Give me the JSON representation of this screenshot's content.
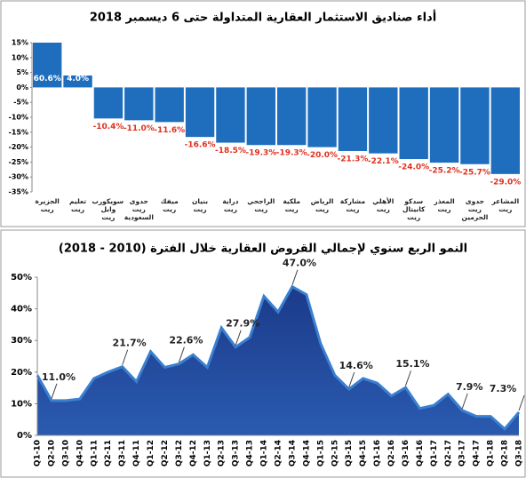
{
  "chart_data": [
    {
      "type": "bar",
      "title": "أداء صناديق الاستثمار العقارية المتداولة حتى 6 ديسمبر 2018",
      "categories": [
        "الجزيرة ريت",
        "تعليم ريت",
        "سويكورب وابل ريت",
        "جدوى ريت السعودية",
        "ميفك ريت",
        "بنيان ريت",
        "دراية ريت",
        "الراجحي ريت",
        "ملكية ريت",
        "الرياض ريت",
        "مشاركة ريت",
        "الأهلي ريت",
        "سدكو كابيتال ريت",
        "المعذر ريت",
        "جدوى ريت الحرمين",
        "المشاعر ريت"
      ],
      "values": [
        60.6,
        4.0,
        -10.4,
        -11.0,
        -11.6,
        -16.6,
        -18.5,
        -19.3,
        -19.3,
        -20.0,
        -21.3,
        -22.1,
        -24.0,
        -25.2,
        -25.7,
        -29.0
      ],
      "value_labels": [
        "60.6%",
        "4.0%",
        "-10.4%",
        "-11.0%",
        "-11.6%",
        "-16.6%",
        "-18.5%",
        "-19.3%",
        "-19.3%",
        "-20.0%",
        "-21.3%",
        "-22.1%",
        "-24.0%",
        "-25.2%",
        "-25.7%",
        "-29.0%"
      ],
      "color": "#1f6dbd",
      "value_label_color": "#e0301e",
      "ylim": [
        -35,
        15
      ],
      "yticks": [
        {
          "value": 15,
          "label": "15%"
        },
        {
          "value": 10,
          "label": "10%"
        },
        {
          "value": 5,
          "label": "5%"
        },
        {
          "value": 0,
          "label": "0%"
        },
        {
          "value": -5,
          "label": "-5%"
        },
        {
          "value": -10,
          "label": "-10%"
        },
        {
          "value": -15,
          "label": "-15%"
        },
        {
          "value": -20,
          "label": "-20%"
        },
        {
          "value": -25,
          "label": "-25%"
        },
        {
          "value": -30,
          "label": "-30%"
        },
        {
          "value": -35,
          "label": "-35%"
        }
      ]
    },
    {
      "type": "area",
      "title": "النمو الربع سنوي لإجمالي القروض العقارية خلال الفترة (2010 - 2018)",
      "categories": [
        "Q1-10",
        "Q2-10",
        "Q3-10",
        "Q4-10",
        "Q1-11",
        "Q2-11",
        "Q3-11",
        "Q4-11",
        "Q1-12",
        "Q2-12",
        "Q3-12",
        "Q4-12",
        "Q1-13",
        "Q2-13",
        "Q3-13",
        "Q4-13",
        "Q1-14",
        "Q2-14",
        "Q3-14",
        "Q4-14",
        "Q1-15",
        "Q2-15",
        "Q3-15",
        "Q4-15",
        "Q1-16",
        "Q2-16",
        "Q3-16",
        "Q4-16",
        "Q1-17",
        "Q2-17",
        "Q3-17",
        "Q4-17",
        "Q1-18",
        "Q2-18",
        "Q3-18"
      ],
      "values": [
        19,
        11.0,
        11,
        11.5,
        18,
        20,
        21.7,
        17,
        26.5,
        21.5,
        22.6,
        25.5,
        21.5,
        34,
        27.9,
        31,
        44,
        39,
        47.0,
        44.5,
        29,
        19,
        14.6,
        18,
        16.5,
        12.5,
        15.1,
        8.5,
        9.5,
        13,
        7.9,
        6,
        6,
        2,
        7.3
      ],
      "value_labels": [
        null,
        "11.0%",
        null,
        null,
        null,
        null,
        "21.7%",
        null,
        null,
        null,
        "22.6%",
        null,
        null,
        null,
        "27.9%",
        null,
        null,
        null,
        "47.0%",
        null,
        null,
        null,
        "14.6%",
        null,
        null,
        null,
        "15.1%",
        null,
        null,
        null,
        "7.9%",
        null,
        null,
        null,
        "7.3%"
      ],
      "color": "#1c3a8a",
      "line_color": "#3a7fd0",
      "ylim": [
        0,
        50
      ],
      "yticks": [
        {
          "value": 0,
          "label": "0%"
        },
        {
          "value": 10,
          "label": "10%"
        },
        {
          "value": 20,
          "label": "20%"
        },
        {
          "value": 30,
          "label": "30%"
        },
        {
          "value": 40,
          "label": "40%"
        },
        {
          "value": 50,
          "label": "50%"
        }
      ]
    }
  ]
}
